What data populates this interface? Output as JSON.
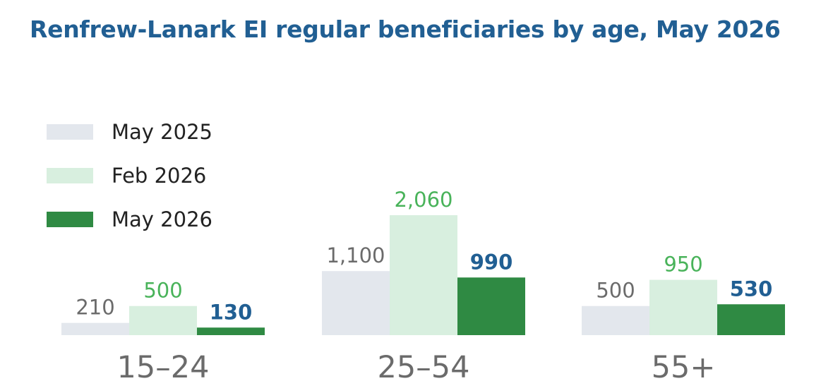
{
  "chart_data": {
    "type": "bar",
    "title": "Renfrew-Lanark EI regular beneficiaries by age, May 2026",
    "xlabel": "",
    "ylabel": "",
    "ylim": [
      0,
      2060
    ],
    "grid": false,
    "legend_position": "top-left",
    "categories": [
      "15–24",
      "25–54",
      "55+"
    ],
    "series": [
      {
        "name": "May 2025",
        "values": [
          210,
          1100,
          500
        ],
        "labels": [
          "210",
          "1,100",
          "500"
        ],
        "color": "#e3e7ed",
        "label_color": "#6b6b6b",
        "bold": false
      },
      {
        "name": "Feb 2026",
        "values": [
          500,
          2060,
          950
        ],
        "labels": [
          "500",
          "2,060",
          "950"
        ],
        "color": "#d8efdf",
        "label_color": "#49b35a",
        "bold": false
      },
      {
        "name": "May 2026",
        "values": [
          130,
          990,
          530
        ],
        "labels": [
          "130",
          "990",
          "530"
        ],
        "color": "#2f8a43",
        "label_color": "#215f93",
        "bold": true
      }
    ]
  }
}
